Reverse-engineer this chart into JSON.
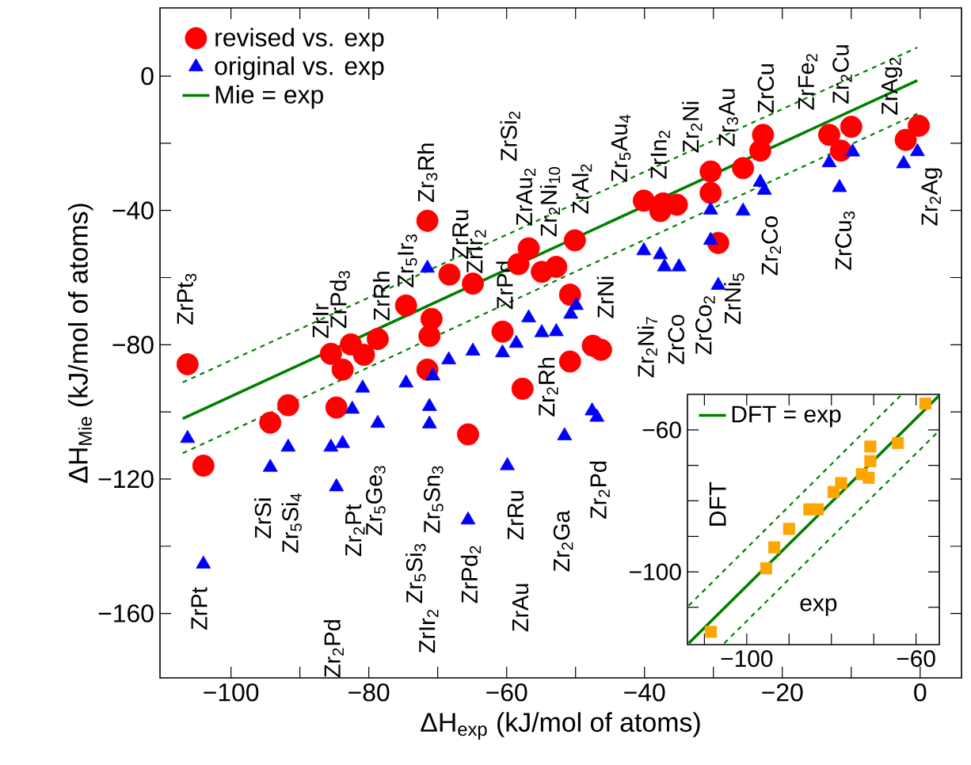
{
  "chart_data": [
    {
      "type": "scatter",
      "xlabel": "ΔH$_{exp}$ (kJ/mol of atoms)",
      "ylabel": "ΔH$_{Mie}$ (kJ/mol of atoms)",
      "xlim": [
        -110.3,
        6
      ],
      "ylim": [
        -179.2,
        20.3
      ],
      "xticks": [
        {
          "value": -100,
          "label": "−100"
        },
        {
          "value": -90,
          "label": null
        },
        {
          "value": -80,
          "label": "−80"
        },
        {
          "value": -70,
          "label": null
        },
        {
          "value": -60,
          "label": "−60"
        },
        {
          "value": -50,
          "label": null
        },
        {
          "value": -40,
          "label": "−40"
        },
        {
          "value": -30,
          "label": null
        },
        {
          "value": -20,
          "label": "−20"
        },
        {
          "value": -10,
          "label": null
        },
        {
          "value": 0,
          "label": "0"
        }
      ],
      "yticks": [
        {
          "value": -160,
          "label": "−160"
        },
        {
          "value": -140,
          "label": null
        },
        {
          "value": -120,
          "label": "−120"
        },
        {
          "value": -100,
          "label": null
        },
        {
          "value": -80,
          "label": "−80"
        },
        {
          "value": -60,
          "label": null
        },
        {
          "value": -40,
          "label": "−40"
        },
        {
          "value": -20,
          "label": null
        },
        {
          "value": 0,
          "label": "0"
        }
      ],
      "legend": "top left",
      "series": [
        {
          "name": "revised vs. exp",
          "color": "#ff0000",
          "marker": "circle",
          "x": [
            -106.3,
            -104,
            -94.3,
            -91.7,
            -85.5,
            -84.7,
            -83.8,
            -82.6,
            -80.7,
            -78.7,
            -74.6,
            -71.5,
            -71.5,
            -71.2,
            -70.9,
            -68.3,
            -65.6,
            -64.9,
            -60.6,
            -58.3,
            -57.7,
            -56.8,
            -54.9,
            -52.8,
            -50.8,
            -50.8,
            -50.1,
            -47.5,
            -46.3,
            -40.1,
            -37.7,
            -37.3,
            -35.3,
            -30.4,
            -30.4,
            -29.3,
            -25.7,
            -23.2,
            -22.8,
            -13.2,
            -11.5,
            -10,
            -2.1,
            -0.2
          ],
          "values": [
            -85.8,
            -116,
            -103.2,
            -98,
            -82.7,
            -98.7,
            -87.4,
            -79.9,
            -83,
            -78.3,
            -68.3,
            -43.1,
            -87.4,
            -77.4,
            -72.3,
            -59.1,
            -106.7,
            -61.8,
            -76.1,
            -56,
            -93.1,
            -51.3,
            -58.3,
            -56.8,
            -65.1,
            -85,
            -48.9,
            -80.3,
            -81.5,
            -37.1,
            -40.2,
            -37.9,
            -38.3,
            -28.4,
            -34.8,
            -49.7,
            -27.4,
            -22.2,
            -17.5,
            -17.5,
            -22.2,
            -15.1,
            -19,
            -14.8
          ]
        },
        {
          "name": "original vs. exp",
          "color": "#0000ff",
          "marker": "triangle",
          "x": [
            -106.3,
            -104,
            -94.3,
            -91.7,
            -85.5,
            -84.7,
            -83.8,
            -82.4,
            -80.9,
            -78.7,
            -74.6,
            -71.5,
            -71.2,
            -71.2,
            -70.7,
            -68.4,
            -65.6,
            -64.9,
            -60.6,
            -59.9,
            -58.6,
            -56.8,
            -54.9,
            -52.8,
            -51.6,
            -50.7,
            -49.9,
            -47.6,
            -46.9,
            -40.1,
            -37.7,
            -37.1,
            -35,
            -30.4,
            -30.4,
            -29.3,
            -25.7,
            -23.2,
            -22.6,
            -13.2,
            -11.7,
            -9.8,
            -2.4,
            -0.4
          ],
          "values": [
            -107.9,
            -145.3,
            -116.5,
            -110.5,
            -110.5,
            -122.3,
            -109.4,
            -99.2,
            -92.9,
            -103.4,
            -91.4,
            -57.2,
            -98.4,
            -103.6,
            -89.3,
            -84.5,
            -132.2,
            -81.9,
            -82.4,
            -116,
            -79.6,
            -72,
            -76.4,
            -76.1,
            -107.1,
            -70.9,
            -68.3,
            -99.7,
            -101.6,
            -52,
            -53.2,
            -56.8,
            -56.8,
            -39.9,
            -48.9,
            -62.3,
            -40.2,
            -31.6,
            -34,
            -25.8,
            -33.2,
            -22.6,
            -26.1,
            -22.5
          ]
        },
        {
          "name": "Mie = exp",
          "type": "line",
          "color": "#008000",
          "line_style": "solid",
          "x": [
            -107,
            -0.4
          ],
          "values": [
            -102,
            -1.3
          ]
        },
        {
          "type": "line",
          "color": "#008000",
          "line_style": "dashed",
          "x": [
            -107,
            -0.4
          ],
          "values": [
            -91.2,
            8.5
          ]
        },
        {
          "type": "line",
          "color": "#008000",
          "line_style": "dashed",
          "x": [
            -107,
            -0.4
          ],
          "values": [
            -112.3,
            -11.2
          ]
        }
      ],
      "annotations": [
        "ZrPt$_{3}$",
        "ZrIr",
        "ZrPd$_{3}$",
        "ZrRh",
        "Zr$_{5}$Ir$_{3}$",
        "Zr$_{3}$Rh",
        "ZrRu",
        "ZrIr$_{2}$",
        "ZrPd",
        "ZrSi$_{2}$",
        "ZrAu$_{2}$",
        "Zr$_{2}$Ni$_{10}$",
        "ZrAl$_{2}$",
        "Zr$_{5}$Au$_{4}$",
        "ZrIn$_{2}$",
        "Zr$_{2}$Ni",
        "Zr$_{3}$Au",
        "ZrCu",
        "ZrFe$_{2}$",
        "Zr$_{2}$Cu",
        "ZrAg$_{2}$",
        "ZrNi",
        "Zr$_{2}$Ni$_{7}$",
        "ZrCo",
        "ZrCo$_{2}$",
        "ZrNi$_{5}$",
        "Zr$_{2}$Co",
        "ZrCu$_{3}$",
        "Zr$_{2}$Ag",
        "Zr$_{2}$Rh",
        "Zr$_{2}$Pd",
        "ZrRu",
        "ZrAu",
        "Zr$_{2}$Ga",
        "ZrPd$_{2}$",
        "ZrIr$_{2}$",
        "Zr$_{5}$Si$_{3}$",
        "Zr$_{5}$Sn$_{3}$",
        "Zr$_{5}$Ge$_{3}$",
        "Zr$_{2}$Pt",
        "Zr$_{2}$Pd",
        "Zr$_{5}$Si$_{4}$",
        "ZrSi",
        "ZrPt"
      ]
    },
    {
      "type": "scatter",
      "xlabel": "exp",
      "ylabel": "DFT",
      "xlim": [
        -114,
        -54.5
      ],
      "ylim": [
        -120.5,
        -50
      ],
      "xticks": [
        {
          "value": -110,
          "label": null
        },
        {
          "value": -100,
          "label": "−100"
        },
        {
          "value": -90,
          "label": null
        },
        {
          "value": -80,
          "label": null
        },
        {
          "value": -70,
          "label": null
        },
        {
          "value": -60,
          "label": "−60"
        }
      ],
      "yticks": [
        {
          "value": -110,
          "label": null
        },
        {
          "value": -100,
          "label": "−100"
        },
        {
          "value": -90,
          "label": null
        },
        {
          "value": -80,
          "label": null
        },
        {
          "value": -70,
          "label": null
        },
        {
          "value": -60,
          "label": "−60"
        }
      ],
      "legend": "top left",
      "series": [
        {
          "color": "#ffa500",
          "marker": "square",
          "x": [
            -108.5,
            -95.4,
            -93.5,
            -90,
            -85.2,
            -83.2,
            -79.5,
            -77.7,
            -72.8,
            -71.2,
            -70.8,
            -70.8,
            -64.3,
            -57.8
          ],
          "values": [
            -116.9,
            -99,
            -93.1,
            -87.9,
            -82.4,
            -82.4,
            -77.5,
            -75,
            -72.5,
            -73.5,
            -68.8,
            -64.7,
            -63.7,
            -52.6
          ]
        },
        {
          "name": "DFT = exp",
          "type": "line",
          "color": "#008000",
          "line_style": "solid",
          "x": [
            -113.7,
            -54.6
          ],
          "values": [
            -120.1,
            -50.4
          ]
        },
        {
          "type": "line",
          "color": "#008000",
          "line_style": "dashed",
          "x": [
            -113.7,
            -63.7
          ],
          "values": [
            -109.5,
            -50.4
          ]
        },
        {
          "type": "line",
          "color": "#008000",
          "line_style": "dashed",
          "x": [
            -105.3,
            -54.6
          ],
          "values": [
            -120.1,
            -60.3
          ]
        }
      ]
    }
  ]
}
